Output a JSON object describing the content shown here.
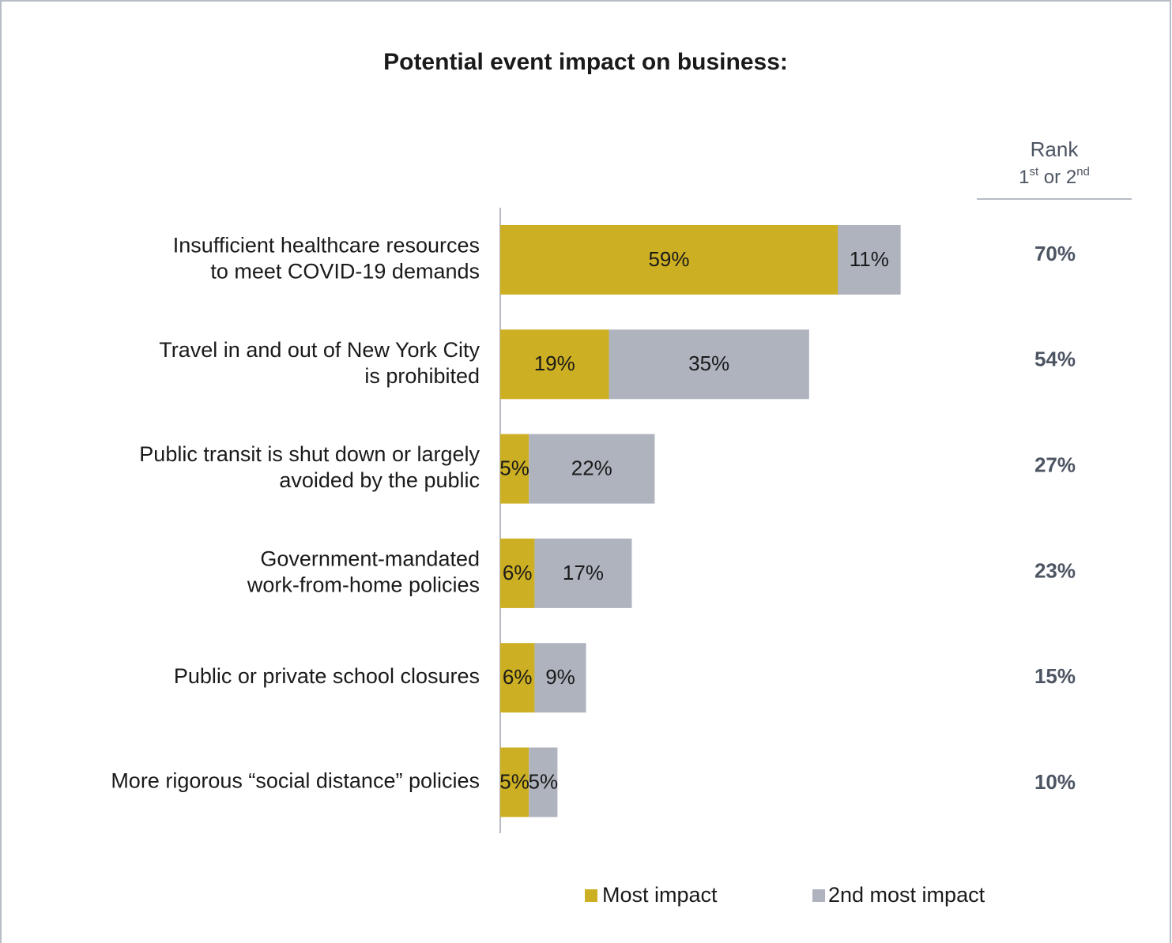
{
  "chart_data": {
    "type": "stacked_bar_horizontal",
    "title": "Potential event impact on business:",
    "categories": [
      "Insufficient healthcare resources\nto meet COVID-19 demands",
      "Travel in and out of New York City\nis prohibited",
      "Public transit is shut down or largely\navoided by the public",
      "Government-mandated\nwork-from-home policies",
      "Public or private school closures",
      "More rigorous “social distance” policies"
    ],
    "series": [
      {
        "name": "Most impact",
        "color": "#cdaf23",
        "values": [
          59,
          19,
          5,
          6,
          6,
          5
        ],
        "value_labels": [
          "59%",
          "19%",
          "5%",
          "6%",
          "6%",
          "5%"
        ]
      },
      {
        "name": "2nd most impact",
        "color": "#aeb3be",
        "values": [
          11,
          35,
          22,
          17,
          9,
          5
        ],
        "value_labels": [
          "11%",
          "35%",
          "22%",
          "17%",
          "9%",
          "5%"
        ]
      }
    ],
    "xlim": [
      0,
      80
    ],
    "total_header": [
      "Rank",
      "1st or 2nd"
    ],
    "total_values": [
      70,
      54,
      27,
      23,
      15,
      10
    ],
    "total_labels": [
      "70%",
      "54%",
      "27%",
      "23%",
      "15%",
      "10%"
    ]
  }
}
